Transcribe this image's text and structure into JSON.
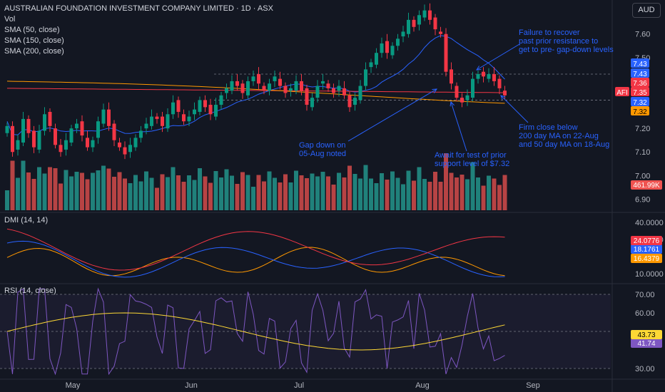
{
  "header": {
    "title": "AUSTRALIAN FOUNDATION INVESTMENT COMPANY LIMITED · 1D · ASX",
    "indicators": [
      "Vol",
      "SMA (50, close)",
      "SMA (150, close)",
      "SMA (200, close)"
    ],
    "currency": "AUD",
    "dmi_label": "DMI (14, 14)",
    "rsi_label": "RSI (14, close)"
  },
  "annotations": [
    {
      "id": "failure",
      "text": "Failure to recover\npast prior resistance to\nget to pre- gap-down levels"
    },
    {
      "id": "gap",
      "text": "Gap down on\n05-Aug noted"
    },
    {
      "id": "await",
      "text": "Await for test of prior\nsupport level of $7.32"
    },
    {
      "id": "firm",
      "text": "Firm close below\n200 day MA on 22-Aug\nand 50 day MA on 18-Aug"
    }
  ],
  "colors": {
    "background": "#131722",
    "up": "#089981",
    "down": "#f23645",
    "vol_up": "#26a69a",
    "vol_down": "#ef5350",
    "sma50": "#2962ff",
    "sma150": "#f23645",
    "sma200": "#ff9800",
    "annotation": "#2962ff",
    "rsi": "#7e57c2",
    "rsi_ma": "#fdd835",
    "adx": "#ff9800",
    "di_plus": "#2962ff",
    "di_minus": "#f23645"
  },
  "chart_data": [
    {
      "type": "candlestick",
      "title": "AUSTRALIAN FOUNDATION INVESTMENT COMPANY LIMITED · 1D · ASX",
      "ylim": [
        6.85,
        7.72
      ],
      "price_ticks": [
        6.9,
        7.0,
        7.1,
        7.2,
        7.3,
        7.4,
        7.5,
        7.6
      ],
      "price_tick_labels": [
        "6.90",
        "7.00",
        "7.10",
        "7.20",
        "",
        "",
        "7.50",
        "7.60"
      ],
      "x_labels": [
        "May",
        "Jun",
        "Jul",
        "Aug",
        "Sep"
      ],
      "closes": [
        7.21,
        7.1,
        7.15,
        7.24,
        7.18,
        7.12,
        7.19,
        7.26,
        7.21,
        7.13,
        7.1,
        7.15,
        7.2,
        7.22,
        7.17,
        7.12,
        7.15,
        7.23,
        7.28,
        7.21,
        7.15,
        7.12,
        7.09,
        7.13,
        7.16,
        7.19,
        7.22,
        7.25,
        7.24,
        7.21,
        7.26,
        7.31,
        7.27,
        7.23,
        7.25,
        7.28,
        7.32,
        7.29,
        7.26,
        7.3,
        7.34,
        7.37,
        7.4,
        7.38,
        7.35,
        7.4,
        7.42,
        7.39,
        7.36,
        7.39,
        7.42,
        7.38,
        7.35,
        7.37,
        7.4,
        7.36,
        7.3,
        7.33,
        7.38,
        7.4,
        7.37,
        7.35,
        7.38,
        7.34,
        7.29,
        7.33,
        7.38,
        7.45,
        7.48,
        7.52,
        7.56,
        7.52,
        7.55,
        7.58,
        7.61,
        7.66,
        7.63,
        7.68,
        7.7,
        7.66,
        7.62,
        7.6,
        7.44,
        7.39,
        7.33,
        7.31,
        7.34,
        7.41,
        7.43,
        7.42,
        7.43,
        7.4,
        7.37,
        7.34
      ],
      "volume_label": "461.99K",
      "last_price_labels": [
        {
          "text": "7.43",
          "color": "#2962ff"
        },
        {
          "text": "7.43",
          "color": "#2962ff"
        },
        {
          "text": "7.36",
          "color": "#f23645"
        },
        {
          "text": "AFI",
          "color": "#f23645"
        },
        {
          "text": "7.35",
          "color": "#f23645"
        },
        {
          "text": "7.32",
          "color": "#2962ff"
        },
        {
          "text": "7.32",
          "color": "#ff9800"
        }
      ],
      "series": [
        {
          "name": "SMA (50, close)",
          "last": 7.36
        },
        {
          "name": "SMA (150, close)",
          "last": 7.35
        },
        {
          "name": "SMA (200, close)",
          "last": 7.32
        }
      ],
      "horizontal_levels": [
        7.43,
        7.32
      ]
    },
    {
      "type": "line",
      "title": "DMI (14, 14)",
      "ylim": [
        5,
        45
      ],
      "ticks": [
        10.0,
        20.0,
        30.0,
        40.0
      ],
      "tick_labels": [
        "10.0000",
        "",
        "30.0000",
        "40.0000"
      ],
      "series": [
        {
          "name": "ADX",
          "last": 16.4379,
          "last_label": "16.4379"
        },
        {
          "name": "+DI",
          "last": 18.1761,
          "last_label": "18.1761"
        },
        {
          "name": "-DI",
          "last": 24.0776,
          "last_label": "24.0776"
        }
      ]
    },
    {
      "type": "line",
      "title": "RSI (14, close)",
      "ylim": [
        25,
        75
      ],
      "ticks": [
        30.0,
        40.0,
        50.0,
        60.0,
        70.0
      ],
      "tick_labels": [
        "30.00",
        "",
        "",
        "60.00",
        "70.00"
      ],
      "bands": [
        30,
        50,
        70
      ],
      "series": [
        {
          "name": "RSI",
          "last": 41.74,
          "last_label": "41.74"
        },
        {
          "name": "RSI-based MA",
          "last": 43.73,
          "last_label": "43.73"
        }
      ]
    }
  ]
}
